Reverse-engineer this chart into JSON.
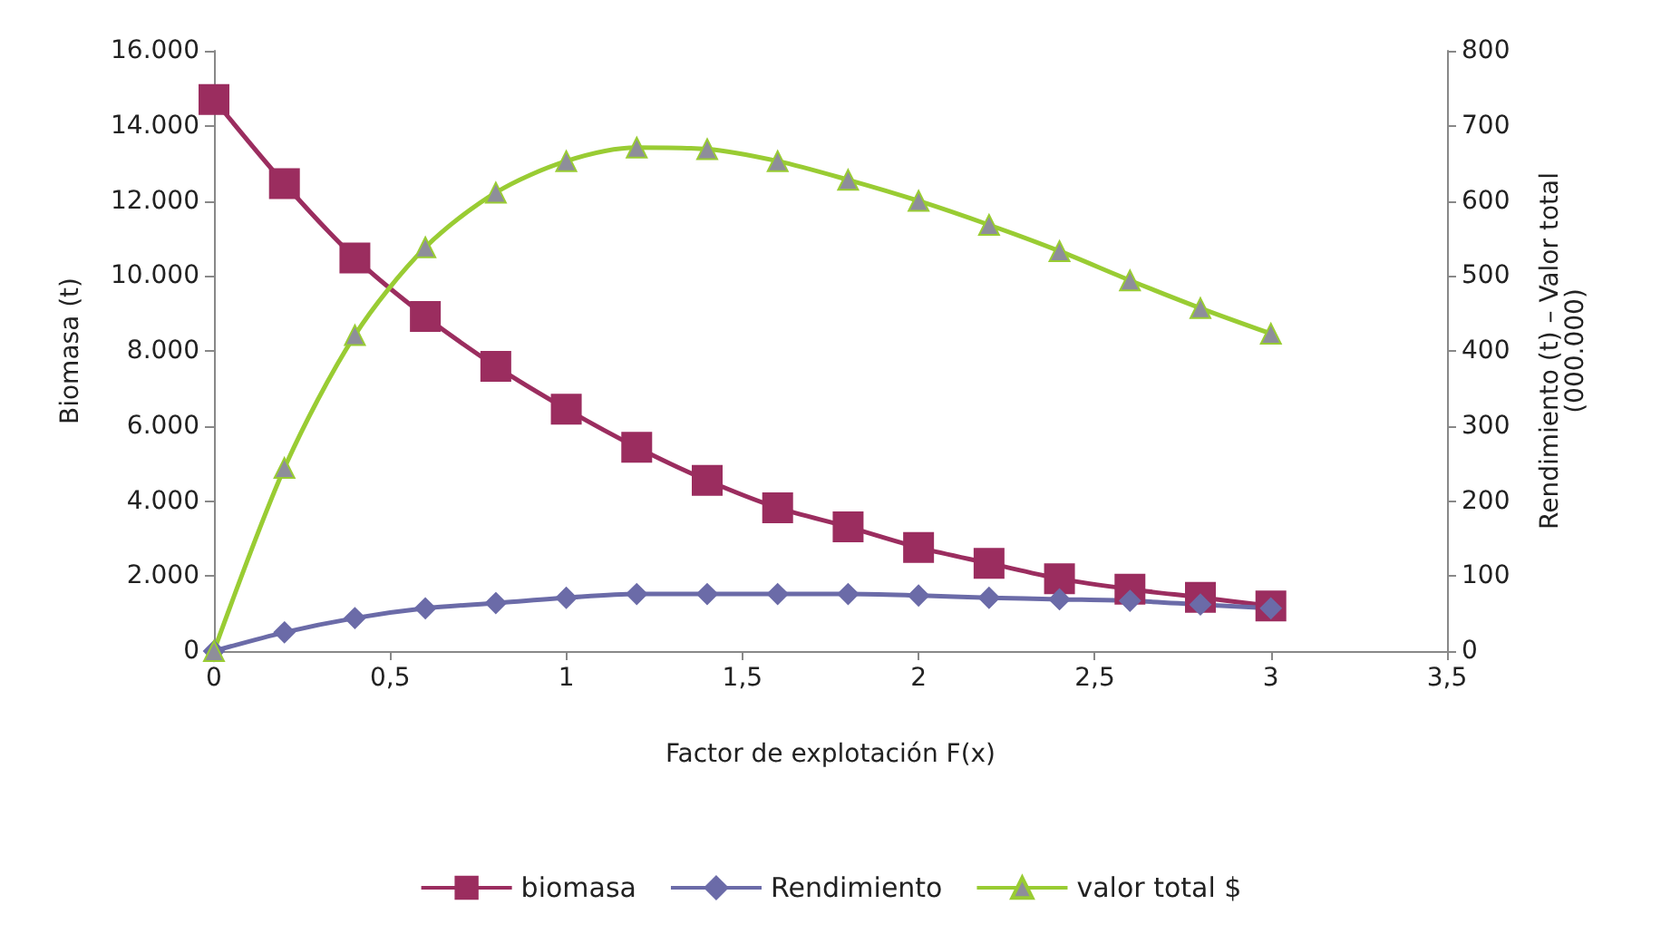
{
  "chart_data": {
    "type": "line",
    "xlabel": "Factor de explotación F(x)",
    "ylabel": "Biomasa (t)",
    "y2label": "Rendimiento (t) – Valor total\n(000.000)",
    "x": [
      0,
      0.2,
      0.4,
      0.6,
      0.8,
      1.0,
      1.2,
      1.4,
      1.6,
      1.8,
      2.0,
      2.2,
      2.4,
      2.6,
      2.8,
      3.0
    ],
    "series": [
      {
        "name": "biomasa",
        "color": "#9b2d5f",
        "marker": "square",
        "values": [
          14700,
          12460,
          10480,
          8920,
          7590,
          6450,
          5430,
          4550,
          3820,
          3310,
          2760,
          2340,
          1930,
          1650,
          1430,
          1200
        ]
      },
      {
        "name": "Rendimiento",
        "color": "#6b6ba8",
        "marker": "diamond",
        "axis": "y2",
        "values": [
          0,
          25,
          44,
          57,
          64,
          71,
          76,
          76,
          76,
          76,
          74,
          71,
          69,
          67,
          62,
          57
        ]
      },
      {
        "name": "valor total $",
        "color": "#99cc33",
        "marker": "triangle",
        "axis": "y2",
        "values": [
          0,
          244,
          421,
          538,
          611,
          653,
          671,
          669,
          653,
          628,
          600,
          568,
          533,
          494,
          457,
          423
        ]
      }
    ],
    "xlim": [
      0,
      3.5
    ],
    "xticks": [
      0,
      {
        "value": 0.5,
        "label": "0,5"
      },
      1,
      {
        "value": 1.5,
        "label": "1,5"
      },
      2,
      {
        "value": 2.5,
        "label": "2,5"
      },
      3,
      {
        "value": 3.5,
        "label": "3,5"
      }
    ],
    "ylim": [
      0,
      16000
    ],
    "yticks": [
      0,
      {
        "value": 2000,
        "label": "2.000"
      },
      {
        "value": 4000,
        "label": "4.000"
      },
      {
        "value": 6000,
        "label": "6.000"
      },
      {
        "value": 8000,
        "label": "8.000"
      },
      {
        "value": 10000,
        "label": "10.000"
      },
      {
        "value": 12000,
        "label": "12.000"
      },
      {
        "value": 14000,
        "label": "14.000"
      },
      {
        "value": 16000,
        "label": "16.000"
      }
    ],
    "y2lim": [
      0,
      800
    ],
    "y2ticks": [
      0,
      100,
      200,
      300,
      400,
      500,
      600,
      700,
      800
    ],
    "grid": false,
    "legend": "bottom",
    "line_style": "solid"
  }
}
